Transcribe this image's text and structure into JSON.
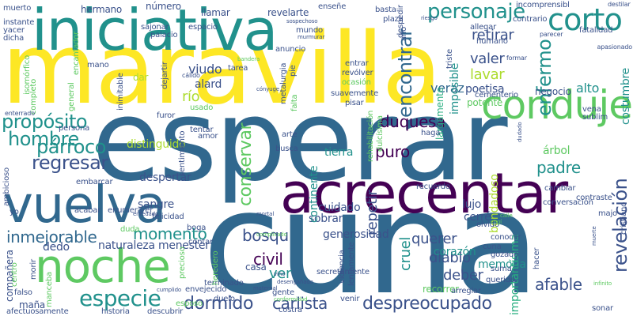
{
  "palette": {
    "dark_purple": "#440154",
    "navy": "#3b528b",
    "steel_blue": "#31688e",
    "teal_blue": "#2c728e",
    "teal": "#21918c",
    "sea_green": "#28ae80",
    "green": "#5ec962",
    "lime": "#addc30",
    "yellow": "#fde725"
  },
  "words": [
    {
      "text": "maravilla",
      "color": "#fde725"
    },
    {
      "text": "esperar",
      "color": "#31688e"
    },
    {
      "text": "cuna",
      "color": "#31688e"
    },
    {
      "text": "iniciativa",
      "color": "#21918c"
    },
    {
      "text": "acrecentar",
      "color": "#440154"
    },
    {
      "text": "vuelva",
      "color": "#31688e"
    },
    {
      "text": "noche",
      "color": "#5ec962"
    },
    {
      "text": "conduje",
      "color": "#5ec962"
    },
    {
      "text": "corto",
      "color": "#21918c"
    },
    {
      "text": "especie",
      "color": "#21918c"
    },
    {
      "text": "inmejorable",
      "color": "#31688e"
    },
    {
      "text": "personaje",
      "color": "#21918c"
    },
    {
      "text": "encontrar",
      "color": "#31688e"
    },
    {
      "text": "enfermo",
      "color": "#21918c"
    },
    {
      "text": "revelación",
      "color": "#3b528b"
    },
    {
      "text": "párroco",
      "color": "#21918c"
    },
    {
      "text": "regresar",
      "color": "#3b528b"
    },
    {
      "text": "propósito",
      "color": "#21918c"
    },
    {
      "text": "hombre",
      "color": "#21918c"
    },
    {
      "text": "conservar",
      "color": "#5ec962"
    },
    {
      "text": "dormido",
      "color": "#3b528b"
    },
    {
      "text": "despreocupado",
      "color": "#3b528b"
    },
    {
      "text": "carlista",
      "color": "#3b528b"
    },
    {
      "text": "duquesa",
      "color": "#440154"
    },
    {
      "text": "momento",
      "color": "#21918c"
    },
    {
      "text": "civil",
      "color": "#440154"
    },
    {
      "text": "bosqu",
      "color": "#3b528b"
    },
    {
      "text": "quer",
      "color": "#3b528b"
    },
    {
      "text": "querer",
      "color": "#3b528b"
    },
    {
      "text": "deber",
      "color": "#3b528b"
    },
    {
      "text": "diablo",
      "color": "#3b528b"
    },
    {
      "text": "afable",
      "color": "#3b528b"
    },
    {
      "text": "padre",
      "color": "#21918c"
    },
    {
      "text": "puro",
      "color": "#440154"
    },
    {
      "text": "repetir",
      "color": "#3b528b"
    },
    {
      "text": "cruel",
      "color": "#21918c"
    },
    {
      "text": "ver",
      "color": "#21918c"
    },
    {
      "text": "costumbre",
      "color": "#21918c"
    },
    {
      "text": "retirar",
      "color": "#3b528b"
    },
    {
      "text": "valer",
      "color": "#3b528b"
    },
    {
      "text": "lavar",
      "color": "#addc30"
    },
    {
      "text": "viudo",
      "color": "#3b528b"
    },
    {
      "text": "alto",
      "color": "#21918c"
    },
    {
      "text": "veraz",
      "color": "#31688e"
    },
    {
      "text": "poetisa",
      "color": "#3b528b"
    },
    {
      "text": "imposible",
      "color": "#21918c"
    },
    {
      "text": "río",
      "color": "#addc30"
    },
    {
      "text": "alard",
      "color": "#3b528b"
    },
    {
      "text": "distinguido",
      "color": "#addc30"
    },
    {
      "text": "despertar",
      "color": "#3b528b"
    },
    {
      "text": "sangre",
      "color": "#3b528b"
    },
    {
      "text": "naturaleza",
      "color": "#3b528b"
    },
    {
      "text": "dedo",
      "color": "#3b528b"
    },
    {
      "text": "menester",
      "color": "#3b528b"
    },
    {
      "text": "tierra",
      "color": "#21918c"
    },
    {
      "text": "cuidado",
      "color": "#3b528b"
    },
    {
      "text": "sobrar",
      "color": "#3b528b"
    },
    {
      "text": "continente",
      "color": "#21918c"
    },
    {
      "text": "lujo",
      "color": "#3b528b"
    },
    {
      "text": "cerré",
      "color": "#3b528b"
    },
    {
      "text": "árbol",
      "color": "#5ec962"
    },
    {
      "text": "bondadoso",
      "color": "#addc30"
    },
    {
      "text": "generosidad",
      "color": "#3b528b"
    },
    {
      "text": "corazón",
      "color": "#21918c"
    },
    {
      "text": "memoria",
      "color": "#21918c"
    },
    {
      "text": "importantísima",
      "color": "#28ae80"
    },
    {
      "text": "compañera",
      "color": "#3b528b"
    },
    {
      "text": "maña",
      "color": "#3b528b"
    },
    {
      "text": "afectuosamente",
      "color": "#3b528b"
    },
    {
      "text": "falso",
      "color": "#3b528b"
    },
    {
      "text": "casa",
      "color": "#3b528b"
    },
    {
      "text": "número",
      "color": "#3b528b"
    },
    {
      "text": "hermano",
      "color": "#3b528b"
    },
    {
      "text": "llamar",
      "color": "#3b528b"
    },
    {
      "text": "revelarte",
      "color": "#3b528b"
    },
    {
      "text": "dar",
      "color": "#addc30"
    },
    {
      "text": "negocio",
      "color": "#3b528b"
    },
    {
      "text": "potente",
      "color": "#5ec962"
    },
    {
      "text": "largamente",
      "color": "#28ae80"
    },
    {
      "text": "arte",
      "color": "#3b528b"
    },
    {
      "text": "busca",
      "color": "#3b528b"
    },
    {
      "text": "tentar",
      "color": "#3b528b"
    },
    {
      "text": "amor",
      "color": "#3b528b"
    },
    {
      "text": "furor",
      "color": "#3b528b"
    },
    {
      "text": "persona",
      "color": "#3b528b"
    },
    {
      "text": "haga",
      "color": "#3b528b"
    },
    {
      "text": "recuerdo",
      "color": "#3b528b"
    },
    {
      "text": "cambiar",
      "color": "#3b528b"
    },
    {
      "text": "contraste",
      "color": "#3b528b"
    },
    {
      "text": "majo",
      "color": "#3b528b"
    },
    {
      "text": "sublim",
      "color": "#3b528b"
    },
    {
      "text": "vena",
      "color": "#3b528b"
    },
    {
      "text": "allegar",
      "color": "#3b528b"
    },
    {
      "text": "humano",
      "color": "#3b528b"
    },
    {
      "text": "cementerio",
      "color": "#3b528b"
    },
    {
      "text": "triste",
      "color": "#3b528b"
    },
    {
      "text": "entrar",
      "color": "#3b528b"
    },
    {
      "text": "revólver",
      "color": "#3b528b"
    },
    {
      "text": "ocasión",
      "color": "#5ec962"
    },
    {
      "text": "suavemente",
      "color": "#3b528b"
    },
    {
      "text": "pisar",
      "color": "#3b528b"
    },
    {
      "text": "anuncio",
      "color": "#3b528b"
    },
    {
      "text": "tarea",
      "color": "#3b528b"
    },
    {
      "text": "palacio",
      "color": "#3b528b"
    },
    {
      "text": "sajonar",
      "color": "#3b528b"
    },
    {
      "text": "espacio",
      "color": "#3b528b"
    },
    {
      "text": "plaza",
      "color": "#3b528b"
    },
    {
      "text": "basta",
      "color": "#3b528b"
    },
    {
      "text": "enseñe",
      "color": "#3b528b"
    },
    {
      "text": "incomprensibl",
      "color": "#3b528b"
    },
    {
      "text": "contrario",
      "color": "#3b528b"
    },
    {
      "text": "fatalidad",
      "color": "#3b528b"
    },
    {
      "text": "instante",
      "color": "#3b528b"
    },
    {
      "text": "yacer",
      "color": "#3b528b"
    },
    {
      "text": "dicha",
      "color": "#3b528b"
    },
    {
      "text": "muerto",
      "color": "#3b528b"
    },
    {
      "text": "mano",
      "color": "#3b528b"
    },
    {
      "text": "encantador",
      "color": "#5ec962"
    },
    {
      "text": "inimitable",
      "color": "#3b528b"
    },
    {
      "text": "dejartir",
      "color": "#3b528b"
    },
    {
      "text": "general",
      "color": "#5ec962"
    },
    {
      "text": "completo",
      "color": "#5ec962"
    },
    {
      "text": "isomórfico",
      "color": "#5ec962"
    },
    {
      "text": "felicidad",
      "color": "#3b528b"
    },
    {
      "text": "acabar",
      "color": "#3b528b"
    },
    {
      "text": "enumerarer",
      "color": "#3b528b"
    },
    {
      "text": "embarcar",
      "color": "#3b528b"
    },
    {
      "text": "ambicioso",
      "color": "#3b528b"
    },
    {
      "text": "yo",
      "color": "#3b528b"
    },
    {
      "text": "morir",
      "color": "#3b528b"
    },
    {
      "text": "centro",
      "color": "#5ec962"
    },
    {
      "text": "manceba",
      "color": "#5ec962"
    },
    {
      "text": "duda",
      "color": "#5ec962"
    },
    {
      "text": "boga",
      "color": "#3b528b"
    },
    {
      "text": "contar",
      "color": "#3b528b"
    },
    {
      "text": "precioso",
      "color": "#5ec962"
    },
    {
      "text": "terminado",
      "color": "#3b528b"
    },
    {
      "text": "heredero",
      "color": "#5ec962"
    },
    {
      "text": "envejecido",
      "color": "#3b528b"
    },
    {
      "text": "esposo",
      "color": "#5ec962"
    },
    {
      "text": "historia",
      "color": "#3b528b"
    },
    {
      "text": "descubrir",
      "color": "#3b528b"
    },
    {
      "text": "duelo",
      "color": "#3b528b"
    },
    {
      "text": "gente",
      "color": "#3b528b"
    },
    {
      "text": "costra",
      "color": "#3b528b"
    },
    {
      "text": "recorrer",
      "color": "#5ec962"
    },
    {
      "text": "venir",
      "color": "#3b528b"
    },
    {
      "text": "hacer",
      "color": "#3b528b"
    },
    {
      "text": "sonar",
      "color": "#3b528b"
    },
    {
      "text": "violencia",
      "color": "#3b528b"
    },
    {
      "text": "lentamente",
      "color": "#3b528b"
    },
    {
      "text": "secretamente",
      "color": "#3b528b"
    },
    {
      "text": "arreglar",
      "color": "#3b528b"
    },
    {
      "text": "querido",
      "color": "#3b528b"
    },
    {
      "text": "suma",
      "color": "#3b528b"
    },
    {
      "text": "gozado",
      "color": "#3b528b"
    },
    {
      "text": "cuna",
      "color": "#3b528b"
    },
    {
      "text": "conocer",
      "color": "#3b528b"
    },
    {
      "text": "olvido",
      "color": "#3b528b"
    },
    {
      "text": "conversación",
      "color": "#3b528b"
    },
    {
      "text": "rehabilitación",
      "color": "#5ec962"
    },
    {
      "text": "dulcísima",
      "color": "#5ec962"
    },
    {
      "text": "cristiano",
      "color": "#3b528b"
    },
    {
      "text": "despedir",
      "color": "#3b528b"
    },
    {
      "text": "año",
      "color": "#3b528b"
    },
    {
      "text": "mundo",
      "color": "#3b528b"
    },
    {
      "text": "metalurgia",
      "color": "#3b528b"
    },
    {
      "text": "pie",
      "color": "#3b528b"
    },
    {
      "text": "falta",
      "color": "#5ec962"
    },
    {
      "text": "usado",
      "color": "#5ec962"
    },
    {
      "text": "sentimiento",
      "color": "#3b528b"
    },
    {
      "text": "enterrado",
      "color": "#3b528b"
    },
    {
      "text": "cálido",
      "color": "#3b528b"
    },
    {
      "text": "parecer",
      "color": "#3b528b"
    },
    {
      "text": "formar",
      "color": "#3b528b"
    },
    {
      "text": "destilar",
      "color": "#3b528b"
    },
    {
      "text": "apasionado",
      "color": "#3b528b"
    },
    {
      "text": "sospechoso",
      "color": "#3b528b"
    },
    {
      "text": "murmurar",
      "color": "#3b528b"
    },
    {
      "text": "riesgo",
      "color": "#3b528b"
    },
    {
      "text": "bandera",
      "color": "#5ec962"
    },
    {
      "text": "cónyuge",
      "color": "#3b528b"
    },
    {
      "text": "maternal",
      "color": "#3b528b"
    },
    {
      "text": "cumplido",
      "color": "#3b528b"
    },
    {
      "text": "desengañado",
      "color": "#3b528b"
    },
    {
      "text": "conformidad",
      "color": "#5ec962"
    },
    {
      "text": "vino",
      "color": "#3b528b"
    },
    {
      "text": "complicado",
      "color": "#5ec962"
    },
    {
      "text": "mortal",
      "color": "#3b528b"
    },
    {
      "text": "infinito",
      "color": "#5ec962"
    },
    {
      "text": "cogí",
      "color": "#5ec962"
    },
    {
      "text": "calle",
      "color": "#5ec962"
    },
    {
      "text": "dudado",
      "color": "#3b528b"
    },
    {
      "text": "muerte",
      "color": "#3b528b"
    },
    {
      "text": "enredado",
      "color": "#3b528b"
    }
  ]
}
